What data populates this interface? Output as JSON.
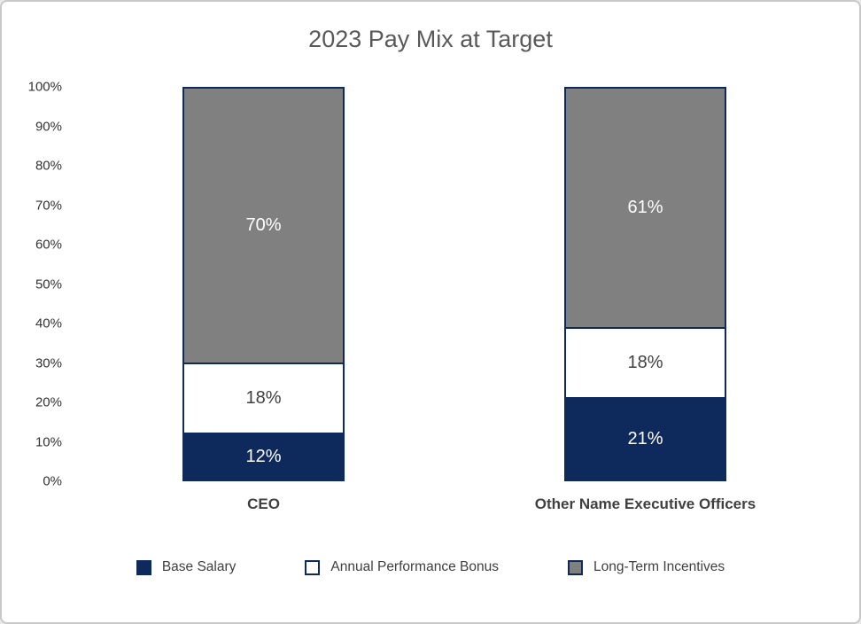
{
  "title": "2023 Pay Mix at Target",
  "colors": {
    "navy": "#0e2a5c",
    "gray": "#808080",
    "white": "#ffffff",
    "frame_border": "#c9c9c9",
    "title_text": "#595959",
    "axis_text": "#333333",
    "category_text": "#404040"
  },
  "chart_data": {
    "type": "bar",
    "stacked": true,
    "title": "2023 Pay Mix at Target",
    "categories": [
      "CEO",
      "Other Name Executive Officers"
    ],
    "series": [
      {
        "name": "Base Salary",
        "values": [
          12,
          21
        ],
        "color": "#0e2a5c",
        "label_color": "#ffffff"
      },
      {
        "name": "Annual Performance Bonus",
        "values": [
          18,
          18
        ],
        "color": "#ffffff",
        "label_color": "#404040"
      },
      {
        "name": "Long-Term Incentives",
        "values": [
          70,
          61
        ],
        "color": "#808080",
        "label_color": "#ffffff"
      }
    ],
    "value_suffix": "%",
    "xlabel": "",
    "ylabel": "",
    "ylim": [
      0,
      100
    ],
    "yticks": [
      "100%",
      "90%",
      "80%",
      "70%",
      "60%",
      "50%",
      "40%",
      "30%",
      "20%",
      "10%",
      "0%"
    ],
    "grid": false,
    "legend_position": "bottom",
    "segment_border_color": "#0e2a5c"
  }
}
